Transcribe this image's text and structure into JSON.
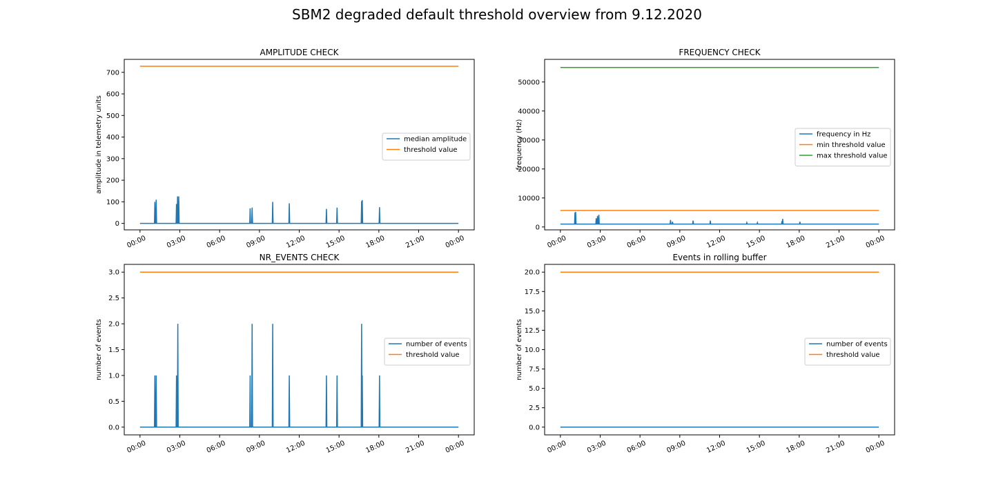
{
  "figure": {
    "title": "SBM2 degraded default threshold overview from 9.12.2020"
  },
  "colors": {
    "blue": "#1f77b4",
    "orange": "#ff7f0e",
    "green": "#2ca02c"
  },
  "chart_data": [
    {
      "type": "line",
      "title": "AMPLITUDE CHECK",
      "xlabel": "",
      "ylabel": "amplitude in telemetry units",
      "xticks": [
        "00:00",
        "03:00",
        "06:00",
        "09:00",
        "12:00",
        "15:00",
        "18:00",
        "21:00",
        "00:00"
      ],
      "xlim_hours": [
        0,
        24
      ],
      "ylim": [
        -30,
        760
      ],
      "yticks": [
        0,
        100,
        200,
        300,
        400,
        500,
        600,
        700
      ],
      "ytick_labels": [
        "0",
        "100",
        "200",
        "300",
        "400",
        "500",
        "600",
        "700"
      ],
      "legend_position": "center-right",
      "series": [
        {
          "name": "median amplitude",
          "color": "#1f77b4",
          "baseline": 0,
          "spikes": [
            {
              "x": 1.12,
              "y": 100
            },
            {
              "x": 1.22,
              "y": 110
            },
            {
              "x": 2.75,
              "y": 90
            },
            {
              "x": 2.83,
              "y": 125
            },
            {
              "x": 2.92,
              "y": 125
            },
            {
              "x": 8.3,
              "y": 70
            },
            {
              "x": 8.45,
              "y": 73
            },
            {
              "x": 10.0,
              "y": 100
            },
            {
              "x": 11.25,
              "y": 93
            },
            {
              "x": 14.05,
              "y": 67
            },
            {
              "x": 14.85,
              "y": 73
            },
            {
              "x": 16.7,
              "y": 103
            },
            {
              "x": 16.75,
              "y": 108
            },
            {
              "x": 18.05,
              "y": 75
            }
          ]
        },
        {
          "name": "threshold value",
          "color": "#ff7f0e",
          "constant": 728
        }
      ]
    },
    {
      "type": "line",
      "title": "FREQUENCY CHECK",
      "xlabel": "",
      "ylabel": "frequency (Hz)",
      "xticks": [
        "00:00",
        "03:00",
        "06:00",
        "09:00",
        "12:00",
        "15:00",
        "18:00",
        "21:00",
        "00:00"
      ],
      "xlim_hours": [
        0,
        24
      ],
      "ylim": [
        -1000,
        57800
      ],
      "yticks": [
        0,
        10000,
        20000,
        30000,
        40000,
        50000
      ],
      "ytick_labels": [
        "0",
        "10000",
        "20000",
        "30000",
        "40000",
        "50000"
      ],
      "legend_position": "center-right",
      "series": [
        {
          "name": "frequency in Hz",
          "color": "#1f77b4",
          "baseline": 1000,
          "spikes": [
            {
              "x": 1.1,
              "y": 5000
            },
            {
              "x": 1.15,
              "y": 5200
            },
            {
              "x": 2.7,
              "y": 3000
            },
            {
              "x": 2.8,
              "y": 3800
            },
            {
              "x": 2.9,
              "y": 4200
            },
            {
              "x": 8.3,
              "y": 2400
            },
            {
              "x": 8.45,
              "y": 1800
            },
            {
              "x": 10.0,
              "y": 2200
            },
            {
              "x": 11.3,
              "y": 2200
            },
            {
              "x": 14.05,
              "y": 1500
            },
            {
              "x": 14.85,
              "y": 1500
            },
            {
              "x": 16.7,
              "y": 2000
            },
            {
              "x": 16.75,
              "y": 2800
            },
            {
              "x": 18.05,
              "y": 1800
            }
          ]
        },
        {
          "name": "min threshold value",
          "color": "#ff7f0e",
          "constant": 5700
        },
        {
          "name": "max threshold value",
          "color": "#2ca02c",
          "constant": 55000
        }
      ]
    },
    {
      "type": "line",
      "title": "NR_EVENTS CHECK",
      "xlabel": "",
      "ylabel": "number of events",
      "xticks": [
        "00:00",
        "03:00",
        "06:00",
        "09:00",
        "12:00",
        "15:00",
        "18:00",
        "21:00",
        "00:00"
      ],
      "xlim_hours": [
        0,
        24
      ],
      "ylim": [
        -0.15,
        3.15
      ],
      "yticks": [
        0,
        0.5,
        1,
        1.5,
        2,
        2.5,
        3
      ],
      "ytick_labels": [
        "0.0",
        "0.5",
        "1.0",
        "1.5",
        "2.0",
        "2.5",
        "3.0"
      ],
      "legend_position": "center-right",
      "series": [
        {
          "name": "number of events",
          "color": "#1f77b4",
          "baseline": 0,
          "spikes": [
            {
              "x": 1.12,
              "y": 1
            },
            {
              "x": 1.22,
              "y": 1
            },
            {
              "x": 2.75,
              "y": 1
            },
            {
              "x": 2.85,
              "y": 2
            },
            {
              "x": 8.3,
              "y": 1
            },
            {
              "x": 8.45,
              "y": 2
            },
            {
              "x": 10.0,
              "y": 2
            },
            {
              "x": 11.25,
              "y": 1
            },
            {
              "x": 14.05,
              "y": 1
            },
            {
              "x": 14.85,
              "y": 1
            },
            {
              "x": 16.7,
              "y": 2
            },
            {
              "x": 16.75,
              "y": 1
            },
            {
              "x": 18.05,
              "y": 1
            }
          ]
        },
        {
          "name": "threshold value",
          "color": "#ff7f0e",
          "constant": 3
        }
      ]
    },
    {
      "type": "line",
      "title": "Events in rolling buffer",
      "xlabel": "",
      "ylabel": "number of events",
      "xticks": [
        "00:00",
        "03:00",
        "06:00",
        "09:00",
        "12:00",
        "15:00",
        "18:00",
        "21:00",
        "00:00"
      ],
      "xlim_hours": [
        0,
        24
      ],
      "ylim": [
        -1,
        21
      ],
      "yticks": [
        0,
        2.5,
        5,
        7.5,
        10,
        12.5,
        15,
        17.5,
        20
      ],
      "ytick_labels": [
        "0.0",
        "2.5",
        "5.0",
        "7.5",
        "10.0",
        "12.5",
        "15.0",
        "17.5",
        "20.0"
      ],
      "legend_position": "center-right",
      "series": [
        {
          "name": "number of events",
          "color": "#1f77b4",
          "baseline": 0,
          "spikes": []
        },
        {
          "name": "threshold value",
          "color": "#ff7f0e",
          "constant": 20
        }
      ]
    }
  ]
}
